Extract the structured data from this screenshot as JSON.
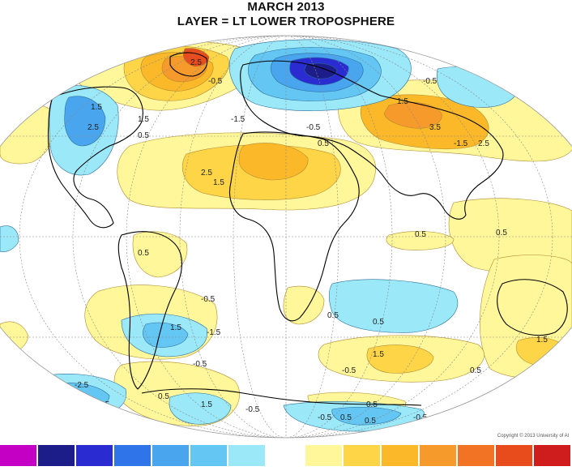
{
  "title": {
    "line1": "MARCH 2013",
    "line2": "LAYER = LT LOWER TROPOSPHERE"
  },
  "copyright": "Copyright © 2013 University of Al",
  "contour_labels": [
    "1.5",
    "2.5",
    "-0.5",
    "1.5",
    "2.5",
    "1.5",
    "-1.5",
    "0.5",
    "-0.5",
    "-0.5",
    "1.5",
    "3.5",
    "-1.5",
    "2.5",
    "0.5",
    "2.5",
    "1.5",
    "0.5",
    "0.5",
    "0.5",
    "-0.5",
    "-1.5",
    "0.5",
    "1.5",
    "0.5",
    "-0.5",
    "-0.5",
    "1.5",
    "0.5",
    "-0.5",
    "1.5",
    "-2.5",
    "0.5",
    "-1.5",
    "-0.5",
    "1.5",
    "-0.5",
    "0.5",
    "-0.5",
    "0.5",
    "0.5",
    "-0.5",
    "0.5"
  ],
  "legend": {
    "colors": [
      "#c400c4",
      "#1d1d8a",
      "#2b2bd2",
      "#2f74e8",
      "#4aa5ef",
      "#63c6f3",
      "#9ae8f8",
      "#ffffff",
      "#fff799",
      "#ffd548",
      "#fbb829",
      "#f79a2c",
      "#f27323",
      "#e84b1c",
      "#cf1d1d"
    ]
  }
}
